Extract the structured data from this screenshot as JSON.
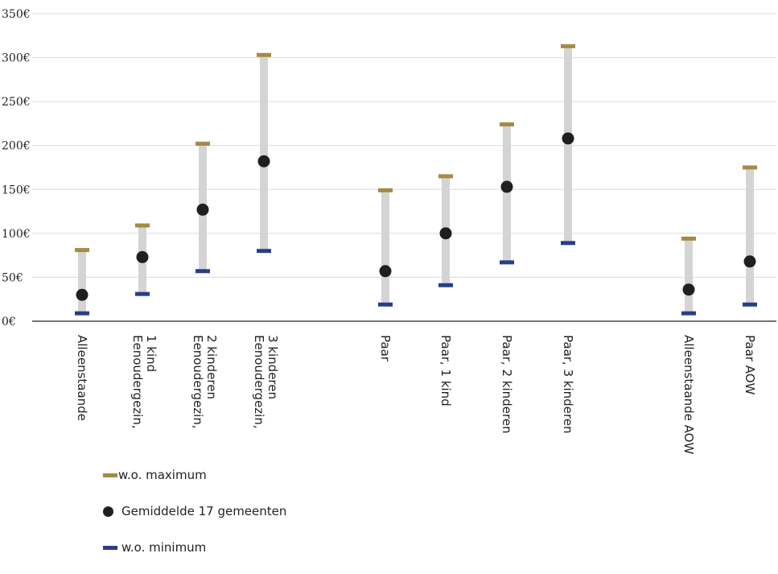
{
  "chart_data": {
    "type": "range-dot",
    "ylim": [
      0,
      350
    ],
    "yticks": [
      0,
      50,
      100,
      150,
      200,
      250,
      300,
      350
    ],
    "ytick_labels": [
      "0€",
      "50€",
      "100€",
      "150€",
      "200€",
      "250€",
      "300€",
      "350€"
    ],
    "categories": [
      "Alleenstaande",
      "Eenoudergezin, 1 kind",
      "Eenoudergezin, 2 kinderen",
      "Eenoudergezin, 3 kinderen",
      "Paar",
      "Paar, 1 kind",
      "Paar, 2 kinderen",
      "Paar, 3 kinderen",
      "Alleenstaande AOW",
      "Paar AOW"
    ],
    "category_label_lines": [
      [
        "Alleenstaande"
      ],
      [
        "Eenoudergezin,",
        "1 kind"
      ],
      [
        "Eenoudergezin,",
        "2 kinderen"
      ],
      [
        "Eenoudergezin,",
        "3 kinderen"
      ],
      [
        "Paar"
      ],
      [
        "Paar, 1 kind"
      ],
      [
        "Paar, 2 kinderen"
      ],
      [
        "Paar, 3 kinderen"
      ],
      [
        "Alleenstaande AOW"
      ],
      [
        "Paar AOW"
      ]
    ],
    "series": [
      {
        "name": "w.o. maximum",
        "values": [
          81,
          109,
          202,
          303,
          149,
          165,
          224,
          313,
          94,
          175
        ]
      },
      {
        "name": "Gemiddelde 17 gemeenten",
        "values": [
          30,
          73,
          127,
          182,
          57,
          100,
          153,
          208,
          36,
          68
        ]
      },
      {
        "name": "w.o. minimum",
        "values": [
          9,
          31,
          57,
          80,
          19,
          41,
          67,
          89,
          9,
          19
        ]
      }
    ],
    "colors": {
      "maximum": "#a58a45",
      "average": "#1f1f1f",
      "minimum": "#263f86",
      "range": "#d4d4d4"
    },
    "grid": true,
    "legend_position": "bottom-left"
  },
  "legend": [
    {
      "label": "w.o. maximum"
    },
    {
      "label": "Gemiddelde 17 gemeenten"
    },
    {
      "label": "w.o. minimum"
    }
  ]
}
